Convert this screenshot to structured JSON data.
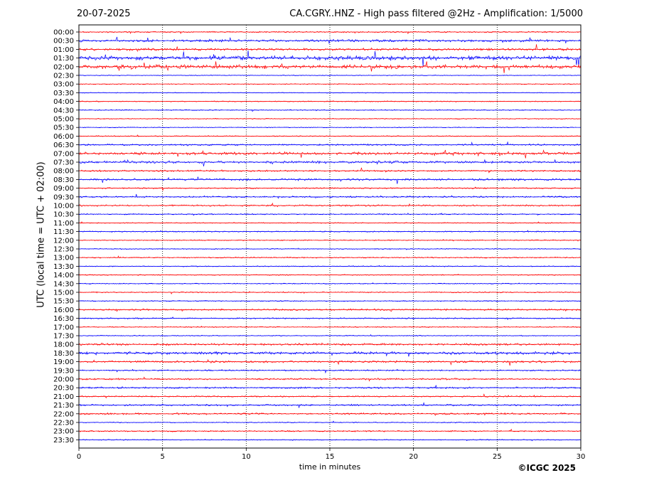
{
  "header": {
    "date": "20-07-2025",
    "title": "CA.CGRY..HNZ - High pass filtered @2Hz - Amplification: 1/5000"
  },
  "footer": {
    "copyright": "©ICGC 2025"
  },
  "chart_data": {
    "type": "line",
    "title": "CA.CGRY..HNZ - High pass filtered @2Hz - Amplification: 1/5000",
    "xlabel": "time in minutes",
    "ylabel": "UTC (local time = UTC + 02:00)",
    "xlim": [
      0,
      30
    ],
    "xticks": [
      0,
      5,
      10,
      15,
      20,
      25,
      30
    ],
    "x_gridlines": [
      5,
      10,
      15,
      20,
      25
    ],
    "grid": "vertical dotted",
    "colors": {
      "even_rows": "#ff0000",
      "odd_rows": "#0000ff"
    },
    "rows": [
      {
        "label": "00:00",
        "color": "#ff0000",
        "level": 0.2
      },
      {
        "label": "00:30",
        "color": "#0000ff",
        "level": 0.5
      },
      {
        "label": "01:00",
        "color": "#ff0000",
        "level": 0.5
      },
      {
        "label": "01:30",
        "color": "#0000ff",
        "level": 1.0
      },
      {
        "label": "02:00",
        "color": "#ff0000",
        "level": 0.9
      },
      {
        "label": "02:30",
        "color": "#0000ff",
        "level": 0.05
      },
      {
        "label": "03:00",
        "color": "#ff0000",
        "level": 0.05
      },
      {
        "label": "03:30",
        "color": "#0000ff",
        "level": 0.05
      },
      {
        "label": "04:00",
        "color": "#ff0000",
        "level": 0.1
      },
      {
        "label": "04:30",
        "color": "#0000ff",
        "level": 0.1
      },
      {
        "label": "05:00",
        "color": "#ff0000",
        "level": 0.1
      },
      {
        "label": "05:30",
        "color": "#0000ff",
        "level": 0.05
      },
      {
        "label": "06:00",
        "color": "#ff0000",
        "level": 0.1
      },
      {
        "label": "06:30",
        "color": "#0000ff",
        "level": 0.3
      },
      {
        "label": "07:00",
        "color": "#ff0000",
        "level": 0.6
      },
      {
        "label": "07:30",
        "color": "#0000ff",
        "level": 0.5
      },
      {
        "label": "08:00",
        "color": "#ff0000",
        "level": 0.3
      },
      {
        "label": "08:30",
        "color": "#0000ff",
        "level": 0.4
      },
      {
        "label": "09:00",
        "color": "#ff0000",
        "level": 0.2
      },
      {
        "label": "09:30",
        "color": "#0000ff",
        "level": 0.3
      },
      {
        "label": "10:00",
        "color": "#ff0000",
        "level": 0.3
      },
      {
        "label": "10:30",
        "color": "#0000ff",
        "level": 0.15
      },
      {
        "label": "11:00",
        "color": "#ff0000",
        "level": 0.1
      },
      {
        "label": "11:30",
        "color": "#0000ff",
        "level": 0.15
      },
      {
        "label": "12:00",
        "color": "#ff0000",
        "level": 0.1
      },
      {
        "label": "12:30",
        "color": "#0000ff",
        "level": 0.1
      },
      {
        "label": "13:00",
        "color": "#ff0000",
        "level": 0.15
      },
      {
        "label": "13:30",
        "color": "#0000ff",
        "level": 0.1
      },
      {
        "label": "14:00",
        "color": "#ff0000",
        "level": 0.1
      },
      {
        "label": "14:30",
        "color": "#0000ff",
        "level": 0.1
      },
      {
        "label": "15:00",
        "color": "#ff0000",
        "level": 0.15
      },
      {
        "label": "15:30",
        "color": "#0000ff",
        "level": 0.1
      },
      {
        "label": "16:00",
        "color": "#ff0000",
        "level": 0.3
      },
      {
        "label": "16:30",
        "color": "#0000ff",
        "level": 0.2
      },
      {
        "label": "17:00",
        "color": "#ff0000",
        "level": 0.1
      },
      {
        "label": "17:30",
        "color": "#0000ff",
        "level": 0.1
      },
      {
        "label": "18:00",
        "color": "#ff0000",
        "level": 0.4
      },
      {
        "label": "18:30",
        "color": "#0000ff",
        "level": 0.6
      },
      {
        "label": "19:00",
        "color": "#ff0000",
        "level": 0.4
      },
      {
        "label": "19:30",
        "color": "#0000ff",
        "level": 0.2
      },
      {
        "label": "20:00",
        "color": "#ff0000",
        "level": 0.3
      },
      {
        "label": "20:30",
        "color": "#0000ff",
        "level": 0.3
      },
      {
        "label": "21:00",
        "color": "#ff0000",
        "level": 0.2
      },
      {
        "label": "21:30",
        "color": "#0000ff",
        "level": 0.3
      },
      {
        "label": "22:00",
        "color": "#ff0000",
        "level": 0.3
      },
      {
        "label": "22:30",
        "color": "#0000ff",
        "level": 0.1
      },
      {
        "label": "23:00",
        "color": "#ff0000",
        "level": 0.2
      },
      {
        "label": "23:30",
        "color": "#0000ff",
        "level": 0.1
      }
    ]
  }
}
